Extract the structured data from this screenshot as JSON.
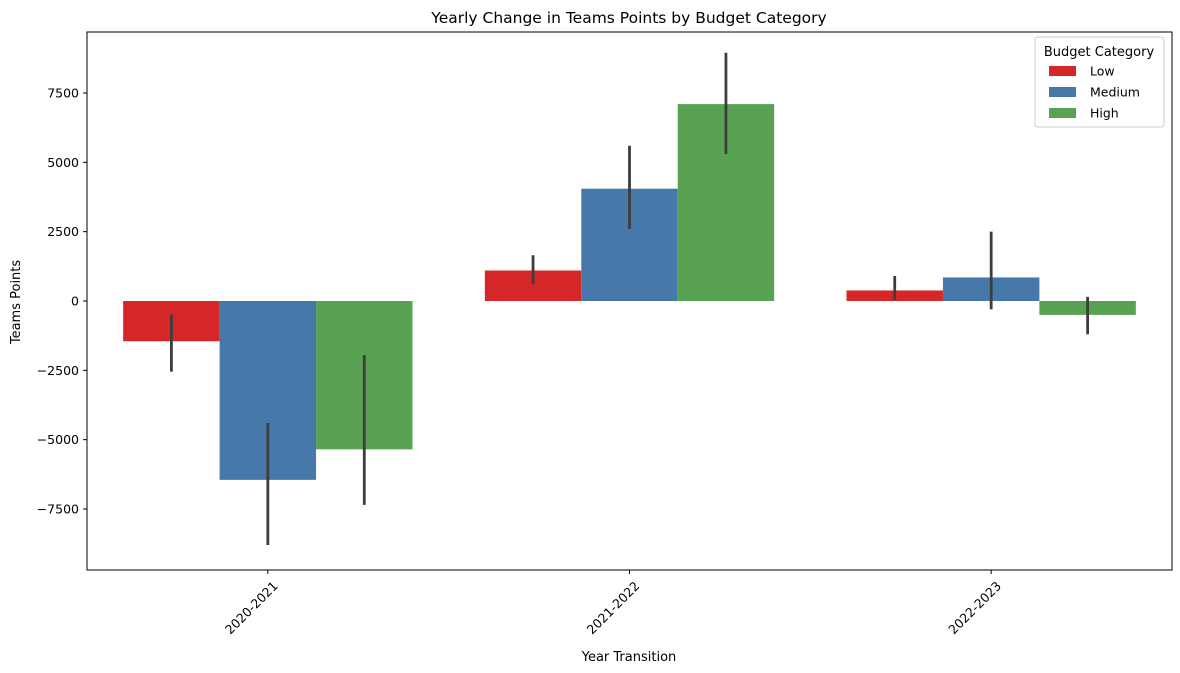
{
  "chart_data": {
    "type": "bar",
    "title": "Yearly Change in Teams Points by Budget Category",
    "xlabel": "Year Transition",
    "ylabel": "Teams Points",
    "categories": [
      "2020-2021",
      "2021-2022",
      "2022-2023"
    ],
    "ylim": [
      -9700,
      9700
    ],
    "yticks": [
      -7500,
      -5000,
      -2500,
      0,
      2500,
      5000,
      7500
    ],
    "ytick_labels": [
      "−7500",
      "−5000",
      "−2500",
      "0",
      "2500",
      "5000",
      "7500"
    ],
    "grid": false,
    "legend": {
      "title": "Budget Category",
      "placement": "top-right"
    },
    "series": [
      {
        "name": "Low",
        "color": "#d62728",
        "values": [
          -1450,
          1100,
          380
        ],
        "error_low": [
          -2550,
          600,
          30
        ],
        "error_high": [
          -500,
          1650,
          900
        ]
      },
      {
        "name": "Medium",
        "color": "#4679aa",
        "values": [
          -6450,
          4050,
          850
        ],
        "error_low": [
          -8800,
          2600,
          -300
        ],
        "error_high": [
          -4400,
          5600,
          2500
        ]
      },
      {
        "name": "High",
        "color": "#59a253",
        "values": [
          -5350,
          7100,
          -500
        ],
        "error_low": [
          -7350,
          5300,
          -1200
        ],
        "error_high": [
          -1950,
          8950,
          150
        ]
      }
    ]
  }
}
